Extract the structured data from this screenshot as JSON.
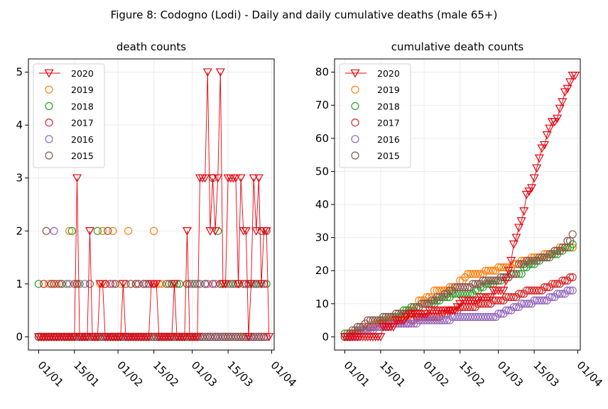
{
  "figure_title": "Figure 8: Codogno (Lodi) - Daily and daily cumulative deaths (male 65+)",
  "colors": {
    "2020": "#e8000b",
    "2019": "#ff7f0e",
    "2018": "#2ca02c",
    "2017": "#d62728",
    "2016": "#9467bd",
    "2015": "#8c564b"
  },
  "chart_data": [
    {
      "type": "line",
      "title": "death counts",
      "xlabel": "",
      "ylabel": "",
      "x_start": "01/01",
      "x_end": "31/03",
      "x_tick_labels": [
        "01/01",
        "15/01",
        "01/02",
        "15/02",
        "01/03",
        "15/03",
        "01/04"
      ],
      "x_tick_days": [
        0,
        14,
        31,
        45,
        60,
        74,
        91
      ],
      "xlim_days": [
        -4,
        92
      ],
      "ylim": [
        -0.25,
        5.25
      ],
      "y_ticks": [
        0,
        1,
        2,
        3,
        4,
        5
      ],
      "grid": true,
      "legend": "top-left",
      "series": [
        {
          "name": "2020",
          "marker": "triangle-down-open",
          "line": true,
          "values": [
            0,
            0,
            0,
            0,
            0,
            0,
            0,
            0,
            0,
            0,
            0,
            0,
            0,
            0,
            0,
            3,
            0,
            0,
            0,
            0,
            2,
            0,
            0,
            0,
            1,
            1,
            0,
            0,
            0,
            0,
            0,
            0,
            0,
            1,
            0,
            0,
            0,
            0,
            0,
            0,
            0,
            0,
            0,
            0,
            1,
            1,
            1,
            0,
            0,
            0,
            0,
            0,
            0,
            1,
            0,
            0,
            0,
            0,
            2,
            0,
            0,
            0,
            0,
            3,
            3,
            3,
            5,
            2,
            3,
            2,
            3,
            5,
            1,
            1,
            3,
            3,
            3,
            3,
            1,
            3,
            2,
            2,
            0,
            1,
            3,
            2,
            3,
            1,
            2,
            2,
            0
          ]
        },
        {
          "name": "2019",
          "marker": "circle-open",
          "values": [
            0,
            0,
            0,
            0,
            1,
            0,
            0,
            1,
            0,
            0,
            0,
            0,
            2,
            0,
            0,
            1,
            0,
            0,
            0,
            0,
            0,
            0,
            0,
            0,
            1,
            2,
            0,
            0,
            1,
            2,
            0,
            0,
            1,
            0,
            0,
            2,
            0,
            0,
            0,
            0,
            0,
            1,
            0,
            0,
            0,
            2,
            0,
            1,
            1,
            0,
            0,
            0,
            0,
            0,
            0,
            1,
            0,
            0,
            0,
            0,
            1,
            0,
            0,
            0,
            0,
            0,
            1,
            0,
            0,
            1,
            0,
            0,
            0,
            1,
            0,
            0,
            0,
            0,
            1,
            0,
            0,
            0,
            1,
            0,
            1,
            0,
            0,
            0,
            0,
            0
          ]
        },
        {
          "name": "2018",
          "marker": "circle-open",
          "values": [
            1,
            0,
            0,
            0,
            0,
            1,
            0,
            0,
            0,
            0,
            0,
            1,
            0,
            2,
            0,
            0,
            1,
            0,
            0,
            0,
            0,
            0,
            0,
            2,
            0,
            0,
            1,
            0,
            0,
            0,
            1,
            0,
            0,
            0,
            0,
            0,
            1,
            0,
            1,
            0,
            0,
            0,
            1,
            0,
            0,
            0,
            0,
            0,
            0,
            0,
            0,
            1,
            0,
            1,
            0,
            1,
            0,
            0,
            0,
            1,
            0,
            0,
            1,
            0,
            0,
            1,
            0,
            0,
            0,
            0,
            2,
            0,
            1,
            0,
            0,
            1,
            0,
            1,
            0,
            0,
            0,
            1,
            0,
            0,
            1,
            0,
            1,
            0,
            0,
            1
          ]
        },
        {
          "name": "2017",
          "marker": "circle-open",
          "values": [
            0,
            0,
            1,
            0,
            0,
            0,
            1,
            0,
            0,
            1,
            0,
            0,
            0,
            0,
            1,
            0,
            0,
            0,
            0,
            0,
            0,
            0,
            0,
            0,
            0,
            0,
            1,
            0,
            1,
            0,
            0,
            0,
            0,
            0,
            0,
            0,
            0,
            0,
            1,
            0,
            0,
            1,
            0,
            0,
            0,
            1,
            0,
            0,
            0,
            0,
            0,
            0,
            1,
            0,
            0,
            0,
            0,
            0,
            1,
            0,
            0,
            0,
            0,
            1,
            0,
            0,
            0,
            0,
            1,
            0,
            0,
            1,
            0,
            0,
            0,
            0,
            0,
            0,
            1,
            0,
            0,
            1,
            0,
            0,
            0,
            1,
            0,
            0,
            1,
            0
          ]
        },
        {
          "name": "2016",
          "marker": "circle-open",
          "values": [
            0,
            0,
            0,
            0,
            0,
            0,
            2,
            0,
            0,
            0,
            0,
            0,
            1,
            0,
            0,
            0,
            0,
            0,
            1,
            0,
            0,
            0,
            0,
            0,
            0,
            0,
            0,
            0,
            0,
            1,
            0,
            0,
            0,
            0,
            0,
            0,
            0,
            0,
            0,
            0,
            0,
            0,
            1,
            0,
            0,
            0,
            0,
            0,
            0,
            0,
            0,
            0,
            0,
            0,
            0,
            0,
            0,
            0,
            0,
            0,
            1,
            0,
            0,
            1,
            0,
            0,
            1,
            0,
            0,
            1,
            0,
            0,
            0,
            0,
            1,
            0,
            0,
            0,
            0,
            0,
            1,
            0,
            0,
            1,
            0,
            0,
            0,
            1,
            0,
            0
          ]
        },
        {
          "name": "2015",
          "marker": "circle-open",
          "values": [
            0,
            0,
            0,
            2,
            0,
            1,
            0,
            0,
            1,
            1,
            0,
            0,
            0,
            0,
            0,
            1,
            0,
            0,
            0,
            0,
            1,
            0,
            0,
            0,
            0,
            0,
            0,
            2,
            0,
            0,
            1,
            0,
            0,
            0,
            1,
            0,
            1,
            0,
            0,
            1,
            0,
            1,
            0,
            1,
            0,
            0,
            0,
            0,
            0,
            0,
            1,
            0,
            0,
            0,
            1,
            0,
            0,
            0,
            0,
            0,
            0,
            1,
            0,
            0,
            0,
            1,
            0,
            0,
            3,
            0,
            0,
            1,
            0,
            0,
            0,
            0,
            1,
            0,
            0,
            0,
            1,
            0,
            1,
            0,
            0,
            1,
            0,
            2,
            0,
            2
          ]
        }
      ]
    },
    {
      "type": "line",
      "title": "cumulative death counts",
      "xlabel": "",
      "ylabel": "",
      "x_start": "01/01",
      "x_end": "31/03",
      "x_tick_labels": [
        "01/01",
        "15/01",
        "01/02",
        "15/02",
        "01/03",
        "15/03",
        "01/04"
      ],
      "x_tick_days": [
        0,
        14,
        31,
        45,
        60,
        74,
        91
      ],
      "xlim_days": [
        -4,
        92
      ],
      "ylim": [
        -4,
        84
      ],
      "y_ticks": [
        0,
        10,
        20,
        30,
        40,
        50,
        60,
        70,
        80
      ],
      "grid": true,
      "legend": "top-left",
      "series": [
        {
          "name": "2020",
          "marker": "triangle-down-open",
          "line": true,
          "values": [
            0,
            0,
            0,
            0,
            0,
            0,
            0,
            0,
            0,
            0,
            0,
            0,
            0,
            0,
            0,
            3,
            3,
            3,
            3,
            3,
            5,
            5,
            5,
            5,
            6,
            7,
            7,
            7,
            7,
            7,
            7,
            7,
            7,
            8,
            8,
            8,
            8,
            8,
            8,
            8,
            8,
            8,
            8,
            8,
            9,
            10,
            11,
            11,
            11,
            11,
            11,
            11,
            11,
            12,
            12,
            12,
            12,
            12,
            14,
            14,
            14,
            14,
            14,
            17,
            20,
            23,
            28,
            30,
            33,
            35,
            38,
            43,
            44,
            45,
            48,
            51,
            54,
            57,
            58,
            61,
            63,
            65,
            65,
            66,
            69,
            71,
            74,
            75,
            77,
            79,
            79
          ]
        },
        {
          "name": "2019",
          "marker": "circle-open",
          "values": [
            0,
            0,
            0,
            0,
            1,
            1,
            1,
            2,
            2,
            2,
            2,
            2,
            4,
            4,
            4,
            5,
            5,
            5,
            5,
            5,
            5,
            5,
            5,
            5,
            6,
            8,
            8,
            8,
            9,
            11,
            11,
            11,
            12,
            12,
            12,
            14,
            14,
            14,
            14,
            14,
            14,
            15,
            15,
            15,
            15,
            17,
            17,
            18,
            19,
            19,
            19,
            19,
            19,
            19,
            19,
            20,
            20,
            20,
            20,
            20,
            21,
            21,
            21,
            21,
            21,
            21,
            22,
            22,
            22,
            23,
            23,
            23,
            23,
            24,
            24,
            24,
            24,
            24,
            25,
            25,
            25,
            25,
            26,
            26,
            27,
            27,
            27,
            27,
            27,
            27
          ]
        },
        {
          "name": "2018",
          "marker": "circle-open",
          "values": [
            1,
            1,
            1,
            1,
            1,
            2,
            2,
            2,
            2,
            2,
            2,
            3,
            3,
            5,
            5,
            5,
            6,
            6,
            6,
            6,
            6,
            6,
            6,
            8,
            8,
            8,
            9,
            9,
            9,
            9,
            10,
            10,
            10,
            10,
            10,
            10,
            11,
            11,
            12,
            12,
            12,
            12,
            13,
            13,
            13,
            13,
            13,
            13,
            13,
            13,
            13,
            14,
            14,
            15,
            15,
            16,
            16,
            16,
            16,
            17,
            17,
            17,
            18,
            18,
            18,
            19,
            19,
            19,
            19,
            19,
            21,
            21,
            22,
            22,
            22,
            23,
            23,
            24,
            24,
            24,
            24,
            25,
            25,
            25,
            26,
            26,
            27,
            27,
            27,
            28
          ]
        },
        {
          "name": "2017",
          "marker": "circle-open",
          "values": [
            0,
            0,
            1,
            1,
            1,
            1,
            2,
            2,
            2,
            3,
            3,
            3,
            3,
            3,
            4,
            4,
            4,
            4,
            4,
            4,
            4,
            4,
            4,
            4,
            4,
            4,
            5,
            5,
            6,
            6,
            6,
            6,
            6,
            6,
            6,
            6,
            6,
            6,
            7,
            7,
            7,
            8,
            8,
            8,
            8,
            9,
            9,
            9,
            9,
            9,
            9,
            9,
            10,
            10,
            10,
            10,
            10,
            10,
            11,
            11,
            11,
            11,
            11,
            12,
            12,
            12,
            12,
            12,
            13,
            13,
            13,
            14,
            14,
            14,
            14,
            14,
            14,
            14,
            15,
            15,
            15,
            16,
            16,
            16,
            16,
            17,
            17,
            17,
            18,
            18
          ]
        },
        {
          "name": "2016",
          "marker": "circle-open",
          "values": [
            0,
            0,
            0,
            0,
            0,
            0,
            2,
            2,
            2,
            2,
            2,
            2,
            3,
            3,
            3,
            3,
            3,
            3,
            4,
            4,
            4,
            4,
            4,
            4,
            4,
            4,
            4,
            4,
            4,
            5,
            5,
            5,
            5,
            5,
            5,
            5,
            5,
            5,
            5,
            5,
            5,
            5,
            6,
            6,
            6,
            6,
            6,
            6,
            6,
            6,
            6,
            6,
            6,
            6,
            6,
            6,
            6,
            6,
            6,
            6,
            7,
            7,
            7,
            8,
            8,
            8,
            9,
            9,
            9,
            10,
            10,
            10,
            10,
            10,
            11,
            11,
            11,
            11,
            11,
            11,
            12,
            12,
            12,
            13,
            13,
            13,
            13,
            14,
            14,
            14
          ]
        },
        {
          "name": "2015",
          "marker": "circle-open",
          "values": [
            0,
            0,
            0,
            2,
            2,
            3,
            3,
            3,
            4,
            5,
            5,
            5,
            5,
            5,
            5,
            6,
            6,
            6,
            6,
            6,
            7,
            7,
            7,
            7,
            7,
            7,
            7,
            9,
            9,
            9,
            10,
            10,
            10,
            10,
            11,
            11,
            12,
            12,
            12,
            13,
            13,
            14,
            14,
            15,
            15,
            15,
            15,
            15,
            15,
            15,
            16,
            16,
            16,
            16,
            17,
            17,
            17,
            17,
            17,
            17,
            17,
            18,
            18,
            18,
            18,
            19,
            19,
            19,
            22,
            22,
            22,
            23,
            23,
            23,
            23,
            23,
            24,
            24,
            24,
            24,
            25,
            25,
            26,
            26,
            26,
            27,
            27,
            29,
            29,
            31
          ]
        }
      ]
    }
  ]
}
